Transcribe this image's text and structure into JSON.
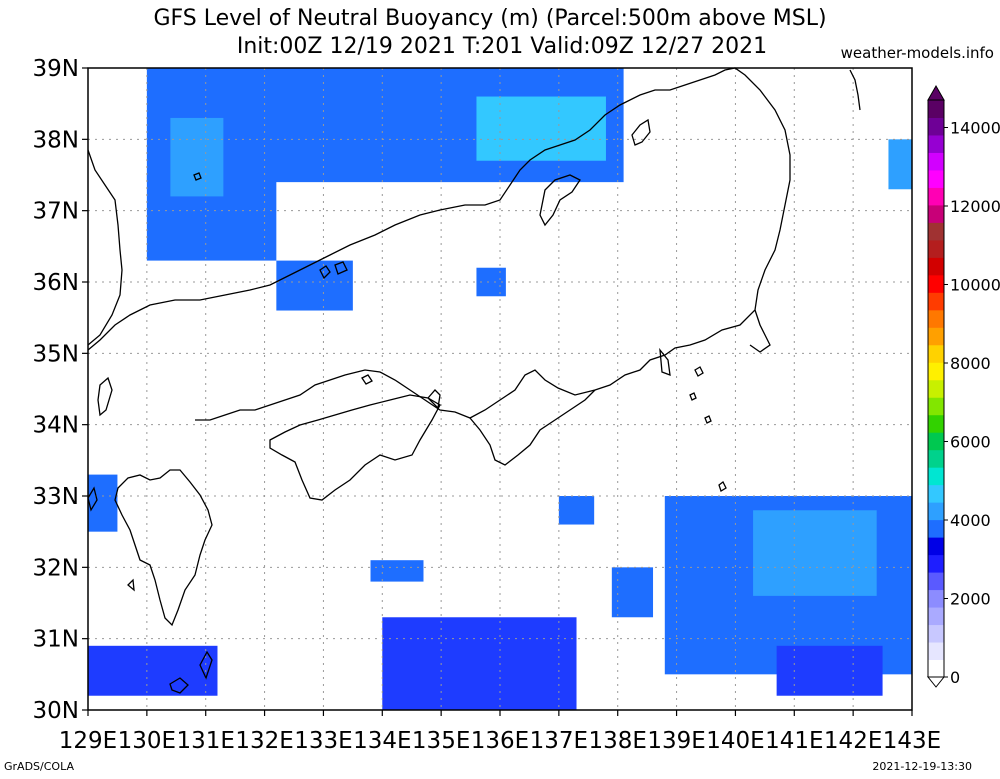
{
  "title": {
    "line1": "GFS Level of Neutral Buoyancy (m) (Parcel:500m above MSL)",
    "line2": "Init:00Z 12/19 2021 T:201 Valid:09Z 12/27 2021"
  },
  "credit": "weather-models.info",
  "footer": {
    "left": "GrADS/COLA",
    "right": "2021-12-19-13:30"
  },
  "map": {
    "lon_range": [
      129,
      143
    ],
    "lat_range": [
      30,
      39
    ],
    "lon_labels": [
      "129E",
      "130E",
      "131E",
      "132E",
      "133E",
      "134E",
      "135E",
      "136E",
      "137E",
      "138E",
      "139E",
      "140E",
      "141E",
      "142E",
      "143E"
    ],
    "lat_labels": [
      "30N",
      "31N",
      "32N",
      "33N",
      "34N",
      "35N",
      "36N",
      "37N",
      "38N",
      "39N"
    ],
    "field_colors": {
      "level_1000_2000": "#1e3cff",
      "level_2000_2500": "#1e6eff",
      "level_2500_3000": "#2ea0ff",
      "level_3000_3500": "#33c8ff"
    },
    "field_regions": [
      {
        "name": "north-sea-block",
        "color": "level_2000_2500",
        "lon": [
          130,
          138.1
        ],
        "lat": [
          37.4,
          39
        ]
      },
      {
        "name": "north-sea-west",
        "color": "level_2000_2500",
        "lon": [
          130,
          132.2
        ],
        "lat": [
          36.3,
          37.5
        ]
      },
      {
        "name": "north-sea-south",
        "color": "level_2000_2500",
        "lon": [
          132.2,
          133.5
        ],
        "lat": [
          35.6,
          36.3
        ]
      },
      {
        "name": "north-sea-shallow-1",
        "color": "level_2500_3000",
        "lon": [
          130.4,
          131.3
        ],
        "lat": [
          37.2,
          38.3
        ]
      },
      {
        "name": "north-sea-shallow-2",
        "color": "level_3000_3500",
        "lon": [
          135.6,
          137.8
        ],
        "lat": [
          37.7,
          38.6
        ]
      },
      {
        "name": "wakasa-bay",
        "color": "level_2000_2500",
        "lon": [
          135.6,
          136.1
        ],
        "lat": [
          35.8,
          36.2
        ]
      },
      {
        "name": "east-block",
        "color": "level_2500_3000",
        "lon": [
          142.6,
          143
        ],
        "lat": [
          37.3,
          38
        ]
      },
      {
        "name": "kyushu-west",
        "color": "level_2000_2500",
        "lon": [
          129,
          129.5
        ],
        "lat": [
          32.5,
          33.3
        ]
      },
      {
        "name": "south-sea-band",
        "color": "level_1000_2000",
        "lon": [
          134,
          137.3
        ],
        "lat": [
          30,
          31.3
        ]
      },
      {
        "name": "southwest-band",
        "color": "level_1000_2000",
        "lon": [
          129,
          131.2
        ],
        "lat": [
          30.2,
          30.9
        ]
      },
      {
        "name": "southeast-block",
        "color": "level_2000_2500",
        "lon": [
          138.8,
          143
        ],
        "lat": [
          30.5,
          33
        ]
      },
      {
        "name": "southeast-core",
        "color": "level_2500_3000",
        "lon": [
          140.3,
          142.4
        ],
        "lat": [
          31.6,
          32.8
        ]
      },
      {
        "name": "southeast-deep",
        "color": "level_1000_2000",
        "lon": [
          140.7,
          142.5
        ],
        "lat": [
          30.2,
          30.9
        ]
      },
      {
        "name": "mid-patch-1",
        "color": "level_2000_2500",
        "lon": [
          133.8,
          134.7
        ],
        "lat": [
          31.8,
          32.1
        ]
      },
      {
        "name": "mid-patch-2",
        "color": "level_2000_2500",
        "lon": [
          137.9,
          138.6
        ],
        "lat": [
          31.3,
          32
        ]
      },
      {
        "name": "mid-patch-3",
        "color": "level_2000_2500",
        "lon": [
          137,
          137.6
        ],
        "lat": [
          32.6,
          33
        ]
      }
    ],
    "colorbar": {
      "ticks": [
        "0",
        "2000",
        "4000",
        "6000",
        "8000",
        "10000",
        "12000",
        "14000"
      ],
      "colors": [
        "#ffffff",
        "#e6e6ff",
        "#c8c8ff",
        "#aaaaff",
        "#8c8cff",
        "#5a5aff",
        "#1e1eff",
        "#0000e6",
        "#1e6eff",
        "#2ea0ff",
        "#33c8ff",
        "#00e6d2",
        "#00d28c",
        "#00c850",
        "#32d200",
        "#82e600",
        "#c8f000",
        "#fff000",
        "#ffd200",
        "#ffa000",
        "#ff7800",
        "#ff3c00",
        "#ff0000",
        "#d20000",
        "#b41e1e",
        "#a03232",
        "#c80078",
        "#ff00b4",
        "#ff00ff",
        "#d200ff",
        "#9600d2",
        "#6e0096",
        "#5a0064"
      ]
    }
  }
}
